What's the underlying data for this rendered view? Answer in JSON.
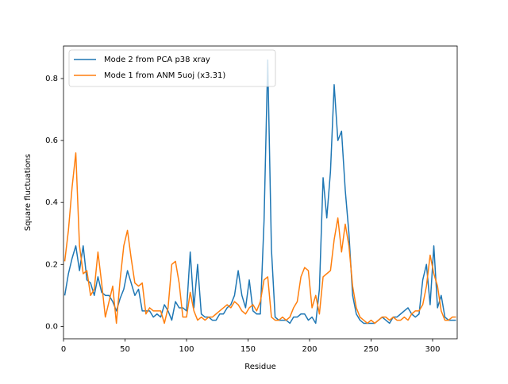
{
  "chart_data": {
    "type": "line",
    "xlabel": "Residue",
    "ylabel": "Square fluctuations",
    "xlim": [
      0,
      320
    ],
    "ylim": [
      -0.04,
      0.905
    ],
    "xticks": [
      0,
      50,
      100,
      150,
      200,
      250,
      300
    ],
    "yticks": [
      {
        "value": 0,
        "label": "0.0"
      },
      0.2,
      0.4,
      0.6,
      0.8
    ],
    "grid": false,
    "legend": "upper left",
    "x": [
      1,
      4,
      7,
      10,
      13,
      16,
      19,
      22,
      25,
      28,
      31,
      34,
      37,
      40,
      43,
      46,
      49,
      52,
      55,
      58,
      61,
      64,
      67,
      70,
      73,
      76,
      79,
      82,
      85,
      88,
      91,
      94,
      97,
      100,
      103,
      106,
      109,
      112,
      115,
      118,
      121,
      124,
      127,
      130,
      133,
      136,
      139,
      142,
      145,
      148,
      151,
      154,
      157,
      160,
      163,
      166,
      169,
      172,
      175,
      178,
      181,
      184,
      187,
      190,
      193,
      196,
      199,
      202,
      205,
      208,
      211,
      214,
      217,
      220,
      223,
      226,
      229,
      232,
      235,
      238,
      241,
      244,
      247,
      250,
      253,
      256,
      259,
      262,
      265,
      268,
      271,
      274,
      277,
      280,
      283,
      286,
      289,
      292,
      295,
      298,
      301,
      304,
      307,
      310,
      313,
      316,
      319
    ],
    "series": [
      {
        "name": "Mode 2 from PCA p38 xray",
        "color": "#1f77b4",
        "values": [
          0.1,
          0.17,
          0.22,
          0.26,
          0.18,
          0.26,
          0.15,
          0.14,
          0.1,
          0.16,
          0.11,
          0.1,
          0.1,
          0.08,
          0.05,
          0.09,
          0.12,
          0.18,
          0.14,
          0.1,
          0.12,
          0.05,
          0.05,
          0.05,
          0.03,
          0.04,
          0.03,
          0.07,
          0.05,
          0.02,
          0.08,
          0.06,
          0.06,
          0.05,
          0.24,
          0.06,
          0.2,
          0.04,
          0.03,
          0.03,
          0.02,
          0.02,
          0.04,
          0.04,
          0.06,
          0.07,
          0.1,
          0.18,
          0.1,
          0.06,
          0.15,
          0.05,
          0.04,
          0.04,
          0.34,
          0.86,
          0.25,
          0.03,
          0.02,
          0.02,
          0.02,
          0.01,
          0.03,
          0.03,
          0.04,
          0.04,
          0.02,
          0.03,
          0.01,
          0.12,
          0.48,
          0.35,
          0.5,
          0.78,
          0.6,
          0.63,
          0.44,
          0.3,
          0.1,
          0.04,
          0.02,
          0.01,
          0.01,
          0.01,
          0.01,
          0.02,
          0.03,
          0.02,
          0.01,
          0.03,
          0.03,
          0.04,
          0.05,
          0.06,
          0.04,
          0.03,
          0.04,
          0.15,
          0.2,
          0.07,
          0.26,
          0.06,
          0.1,
          0.03,
          0.02,
          0.02,
          0.02
        ]
      },
      {
        "name": "Mode 1 from ANM 5uoj (x3.31)",
        "color": "#ff7f0e",
        "values": [
          0.21,
          0.31,
          0.45,
          0.56,
          0.26,
          0.17,
          0.18,
          0.1,
          0.12,
          0.24,
          0.14,
          0.03,
          0.08,
          0.13,
          0.01,
          0.15,
          0.26,
          0.31,
          0.22,
          0.14,
          0.13,
          0.14,
          0.04,
          0.06,
          0.05,
          0.05,
          0.05,
          0.01,
          0.06,
          0.2,
          0.21,
          0.14,
          0.03,
          0.03,
          0.11,
          0.05,
          0.02,
          0.03,
          0.02,
          0.03,
          0.03,
          0.04,
          0.05,
          0.06,
          0.07,
          0.06,
          0.08,
          0.07,
          0.05,
          0.04,
          0.06,
          0.07,
          0.05,
          0.08,
          0.15,
          0.16,
          0.03,
          0.02,
          0.02,
          0.03,
          0.02,
          0.03,
          0.06,
          0.08,
          0.16,
          0.19,
          0.18,
          0.06,
          0.1,
          0.04,
          0.16,
          0.17,
          0.18,
          0.28,
          0.35,
          0.24,
          0.33,
          0.26,
          0.13,
          0.06,
          0.03,
          0.02,
          0.01,
          0.02,
          0.01,
          0.02,
          0.03,
          0.03,
          0.02,
          0.03,
          0.02,
          0.02,
          0.03,
          0.02,
          0.04,
          0.05,
          0.05,
          0.07,
          0.13,
          0.23,
          0.17,
          0.13,
          0.05,
          0.02,
          0.02,
          0.03,
          0.03
        ]
      }
    ]
  }
}
